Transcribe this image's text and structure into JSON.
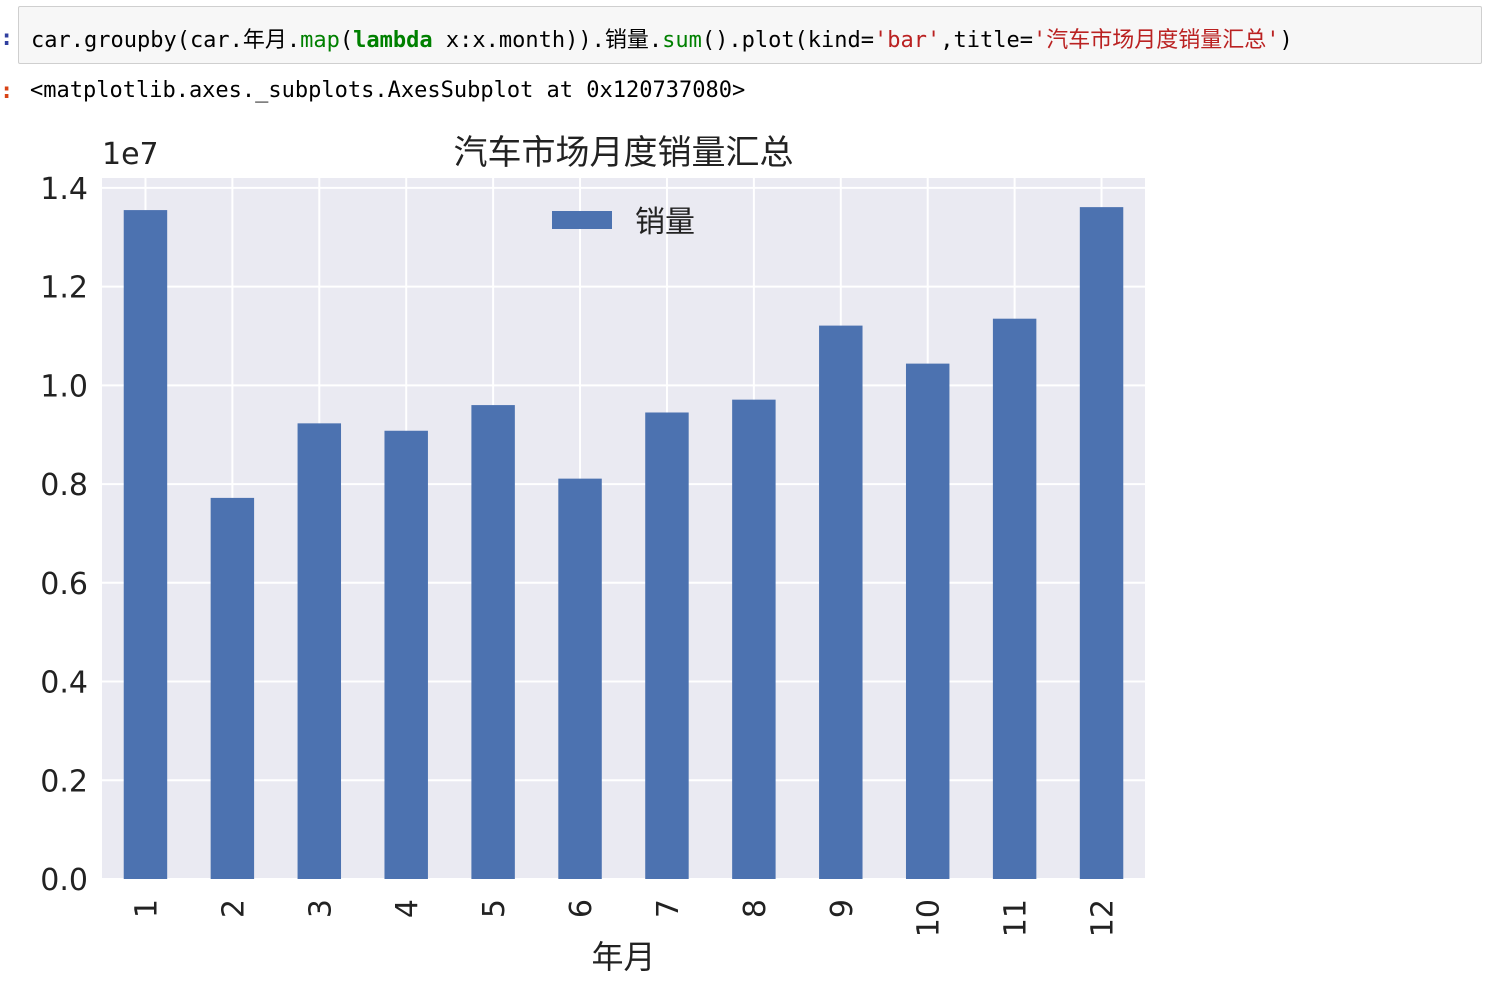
{
  "cell": {
    "in_prompt": ":",
    "out_prompt": ":",
    "code": {
      "t1": "car.groupby(car.年月.",
      "t2": "map",
      "t3": "(",
      "t4": "lambda",
      "t5": " x:x.month)).销量.",
      "t6": "sum",
      "t7": "().plot(kind=",
      "t8": "'bar'",
      "t9": ",title=",
      "t10": "'汽车市场月度销量汇总'",
      "t11": ")"
    },
    "output_text": "<matplotlib.axes._subplots.AxesSubplot at 0x120737080>"
  },
  "colors": {
    "bar": "#4c72b0",
    "axes_bg": "#eaeaf2",
    "grid": "#ffffff",
    "code_keyword": "#008000",
    "code_string": "#ba2121"
  },
  "chart_data": {
    "type": "bar",
    "title": "汽车市场月度销量汇总",
    "xlabel": "年月",
    "ylabel": "",
    "offset_label": "1e7",
    "categories": [
      "1",
      "2",
      "3",
      "4",
      "5",
      "6",
      "7",
      "8",
      "9",
      "10",
      "11",
      "12"
    ],
    "series": [
      {
        "name": "销量",
        "values": [
          13550000,
          7720000,
          9230000,
          9080000,
          9600000,
          8110000,
          9450000,
          9710000,
          11210000,
          10440000,
          11350000,
          13610000
        ]
      }
    ],
    "ylim": [
      0,
      1.42
    ],
    "yticks": [
      "0.0",
      "0.2",
      "0.4",
      "0.6",
      "0.8",
      "1.0",
      "1.2",
      "1.4"
    ],
    "grid": true,
    "legend_position": "upper-center"
  }
}
